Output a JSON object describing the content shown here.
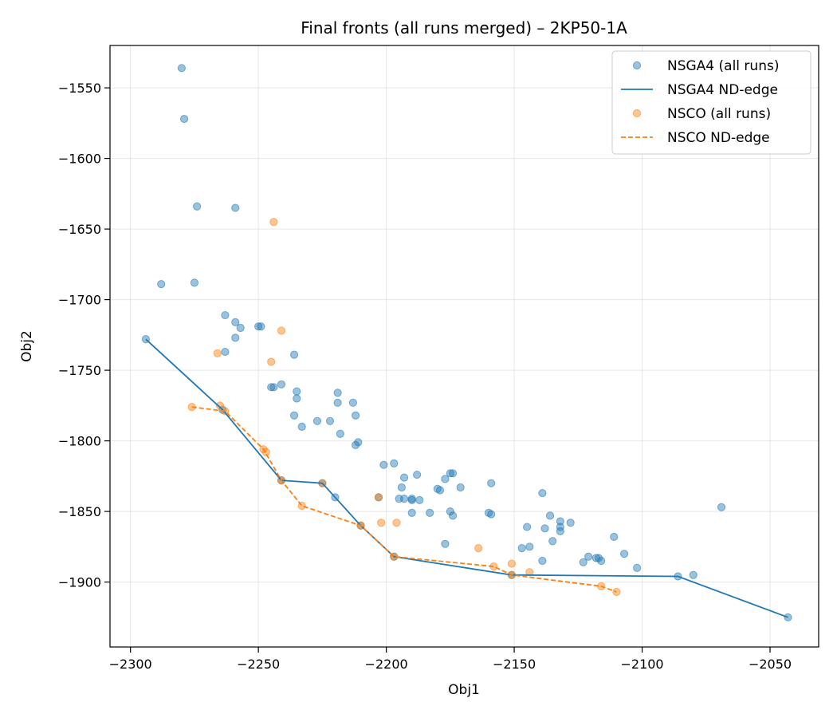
{
  "chart_data": {
    "type": "scatter",
    "title": "Final fronts (all runs merged) – 2KP50-1A",
    "xlabel": "Obj1",
    "ylabel": "Obj2",
    "xlim": [
      -2308,
      -2031
    ],
    "ylim": [
      -1946,
      -1520
    ],
    "xticks": [
      -2300,
      -2250,
      -2200,
      -2150,
      -2100,
      -2050
    ],
    "yticks": [
      -1550,
      -1600,
      -1650,
      -1700,
      -1750,
      -1800,
      -1850,
      -1900
    ],
    "xtick_labels": [
      "−2300",
      "−2250",
      "−2200",
      "−2150",
      "−2100",
      "−2050"
    ],
    "ytick_labels": [
      "−1550",
      "−1600",
      "−1650",
      "−1700",
      "−1750",
      "−1800",
      "−1850",
      "−1900"
    ],
    "grid": true,
    "legend_position": "top-right",
    "colors": {
      "nsga4": "#1f77b4",
      "nsco": "#ff7f0e"
    },
    "series": [
      {
        "name": "NSGA4 (all runs)",
        "kind": "scatter",
        "color": "#1f77b4",
        "points": [
          [
            -2280,
            -1536
          ],
          [
            -2279,
            -1572
          ],
          [
            -2274,
            -1634
          ],
          [
            -2259,
            -1635
          ],
          [
            -2288,
            -1689
          ],
          [
            -2275,
            -1688
          ],
          [
            -2294,
            -1728
          ],
          [
            -2263,
            -1711
          ],
          [
            -2259,
            -1716
          ],
          [
            -2257,
            -1720
          ],
          [
            -2259,
            -1727
          ],
          [
            -2263,
            -1737
          ],
          [
            -2250,
            -1719
          ],
          [
            -2249,
            -1719
          ],
          [
            -2236,
            -1739
          ],
          [
            -2241,
            -1760
          ],
          [
            -2245,
            -1762
          ],
          [
            -2244,
            -1762
          ],
          [
            -2235,
            -1765
          ],
          [
            -2235,
            -1770
          ],
          [
            -2236,
            -1782
          ],
          [
            -2233,
            -1790
          ],
          [
            -2227,
            -1786
          ],
          [
            -2222,
            -1786
          ],
          [
            -2219,
            -1766
          ],
          [
            -2219,
            -1773
          ],
          [
            -2218,
            -1795
          ],
          [
            -2213,
            -1773
          ],
          [
            -2212,
            -1782
          ],
          [
            -2211,
            -1801
          ],
          [
            -2212,
            -1803
          ],
          [
            -2264,
            -1778
          ],
          [
            -2241,
            -1828
          ],
          [
            -2225,
            -1830
          ],
          [
            -2220,
            -1840
          ],
          [
            -2210,
            -1860
          ],
          [
            -2203,
            -1840
          ],
          [
            -2201,
            -1817
          ],
          [
            -2197,
            -1816
          ],
          [
            -2197,
            -1882
          ],
          [
            -2193,
            -1826
          ],
          [
            -2188,
            -1824
          ],
          [
            -2194,
            -1833
          ],
          [
            -2195,
            -1841
          ],
          [
            -2193,
            -1841
          ],
          [
            -2190,
            -1842
          ],
          [
            -2190,
            -1841
          ],
          [
            -2187,
            -1842
          ],
          [
            -2190,
            -1851
          ],
          [
            -2183,
            -1851
          ],
          [
            -2180,
            -1834
          ],
          [
            -2179,
            -1835
          ],
          [
            -2177,
            -1827
          ],
          [
            -2175,
            -1823
          ],
          [
            -2174,
            -1823
          ],
          [
            -2175,
            -1850
          ],
          [
            -2174,
            -1853
          ],
          [
            -2171,
            -1833
          ],
          [
            -2177,
            -1873
          ],
          [
            -2159,
            -1830
          ],
          [
            -2160,
            -1851
          ],
          [
            -2159,
            -1852
          ],
          [
            -2151,
            -1895
          ],
          [
            -2145,
            -1861
          ],
          [
            -2144,
            -1875
          ],
          [
            -2147,
            -1876
          ],
          [
            -2139,
            -1837
          ],
          [
            -2138,
            -1862
          ],
          [
            -2139,
            -1885
          ],
          [
            -2136,
            -1853
          ],
          [
            -2135,
            -1871
          ],
          [
            -2132,
            -1857
          ],
          [
            -2132,
            -1861
          ],
          [
            -2132,
            -1864
          ],
          [
            -2128,
            -1858
          ],
          [
            -2123,
            -1886
          ],
          [
            -2121,
            -1882
          ],
          [
            -2118,
            -1883
          ],
          [
            -2117,
            -1883
          ],
          [
            -2116,
            -1885
          ],
          [
            -2111,
            -1868
          ],
          [
            -2107,
            -1880
          ],
          [
            -2102,
            -1890
          ],
          [
            -2086,
            -1896
          ],
          [
            -2080,
            -1895
          ],
          [
            -2069,
            -1847
          ],
          [
            -2043,
            -1925
          ]
        ]
      },
      {
        "name": "NSGA4 ND-edge",
        "kind": "line",
        "style": "solid",
        "color": "#1f77b4",
        "points": [
          [
            -2294,
            -1728
          ],
          [
            -2264,
            -1778
          ],
          [
            -2241,
            -1828
          ],
          [
            -2225,
            -1830
          ],
          [
            -2210,
            -1860
          ],
          [
            -2197,
            -1882
          ],
          [
            -2151,
            -1895
          ],
          [
            -2086,
            -1896
          ],
          [
            -2043,
            -1925
          ]
        ]
      },
      {
        "name": "NSCO (all runs)",
        "kind": "scatter",
        "color": "#ff7f0e",
        "points": [
          [
            -2244,
            -1645
          ],
          [
            -2241,
            -1722
          ],
          [
            -2266,
            -1738
          ],
          [
            -2245,
            -1744
          ],
          [
            -2276,
            -1776
          ],
          [
            -2265,
            -1775
          ],
          [
            -2263,
            -1779
          ],
          [
            -2248,
            -1806
          ],
          [
            -2247,
            -1808
          ],
          [
            -2241,
            -1828
          ],
          [
            -2233,
            -1846
          ],
          [
            -2225,
            -1830
          ],
          [
            -2210,
            -1860
          ],
          [
            -2203,
            -1840
          ],
          [
            -2202,
            -1858
          ],
          [
            -2196,
            -1858
          ],
          [
            -2197,
            -1882
          ],
          [
            -2164,
            -1876
          ],
          [
            -2158,
            -1889
          ],
          [
            -2151,
            -1887
          ],
          [
            -2151,
            -1895
          ],
          [
            -2144,
            -1893
          ],
          [
            -2116,
            -1903
          ],
          [
            -2110,
            -1907
          ]
        ]
      },
      {
        "name": "NSCO ND-edge",
        "kind": "line",
        "style": "dashed",
        "color": "#ff7f0e",
        "points": [
          [
            -2276,
            -1776
          ],
          [
            -2263,
            -1779
          ],
          [
            -2248,
            -1806
          ],
          [
            -2241,
            -1828
          ],
          [
            -2233,
            -1846
          ],
          [
            -2210,
            -1860
          ],
          [
            -2197,
            -1882
          ],
          [
            -2158,
            -1889
          ],
          [
            -2151,
            -1895
          ],
          [
            -2116,
            -1903
          ],
          [
            -2110,
            -1907
          ]
        ]
      }
    ]
  }
}
